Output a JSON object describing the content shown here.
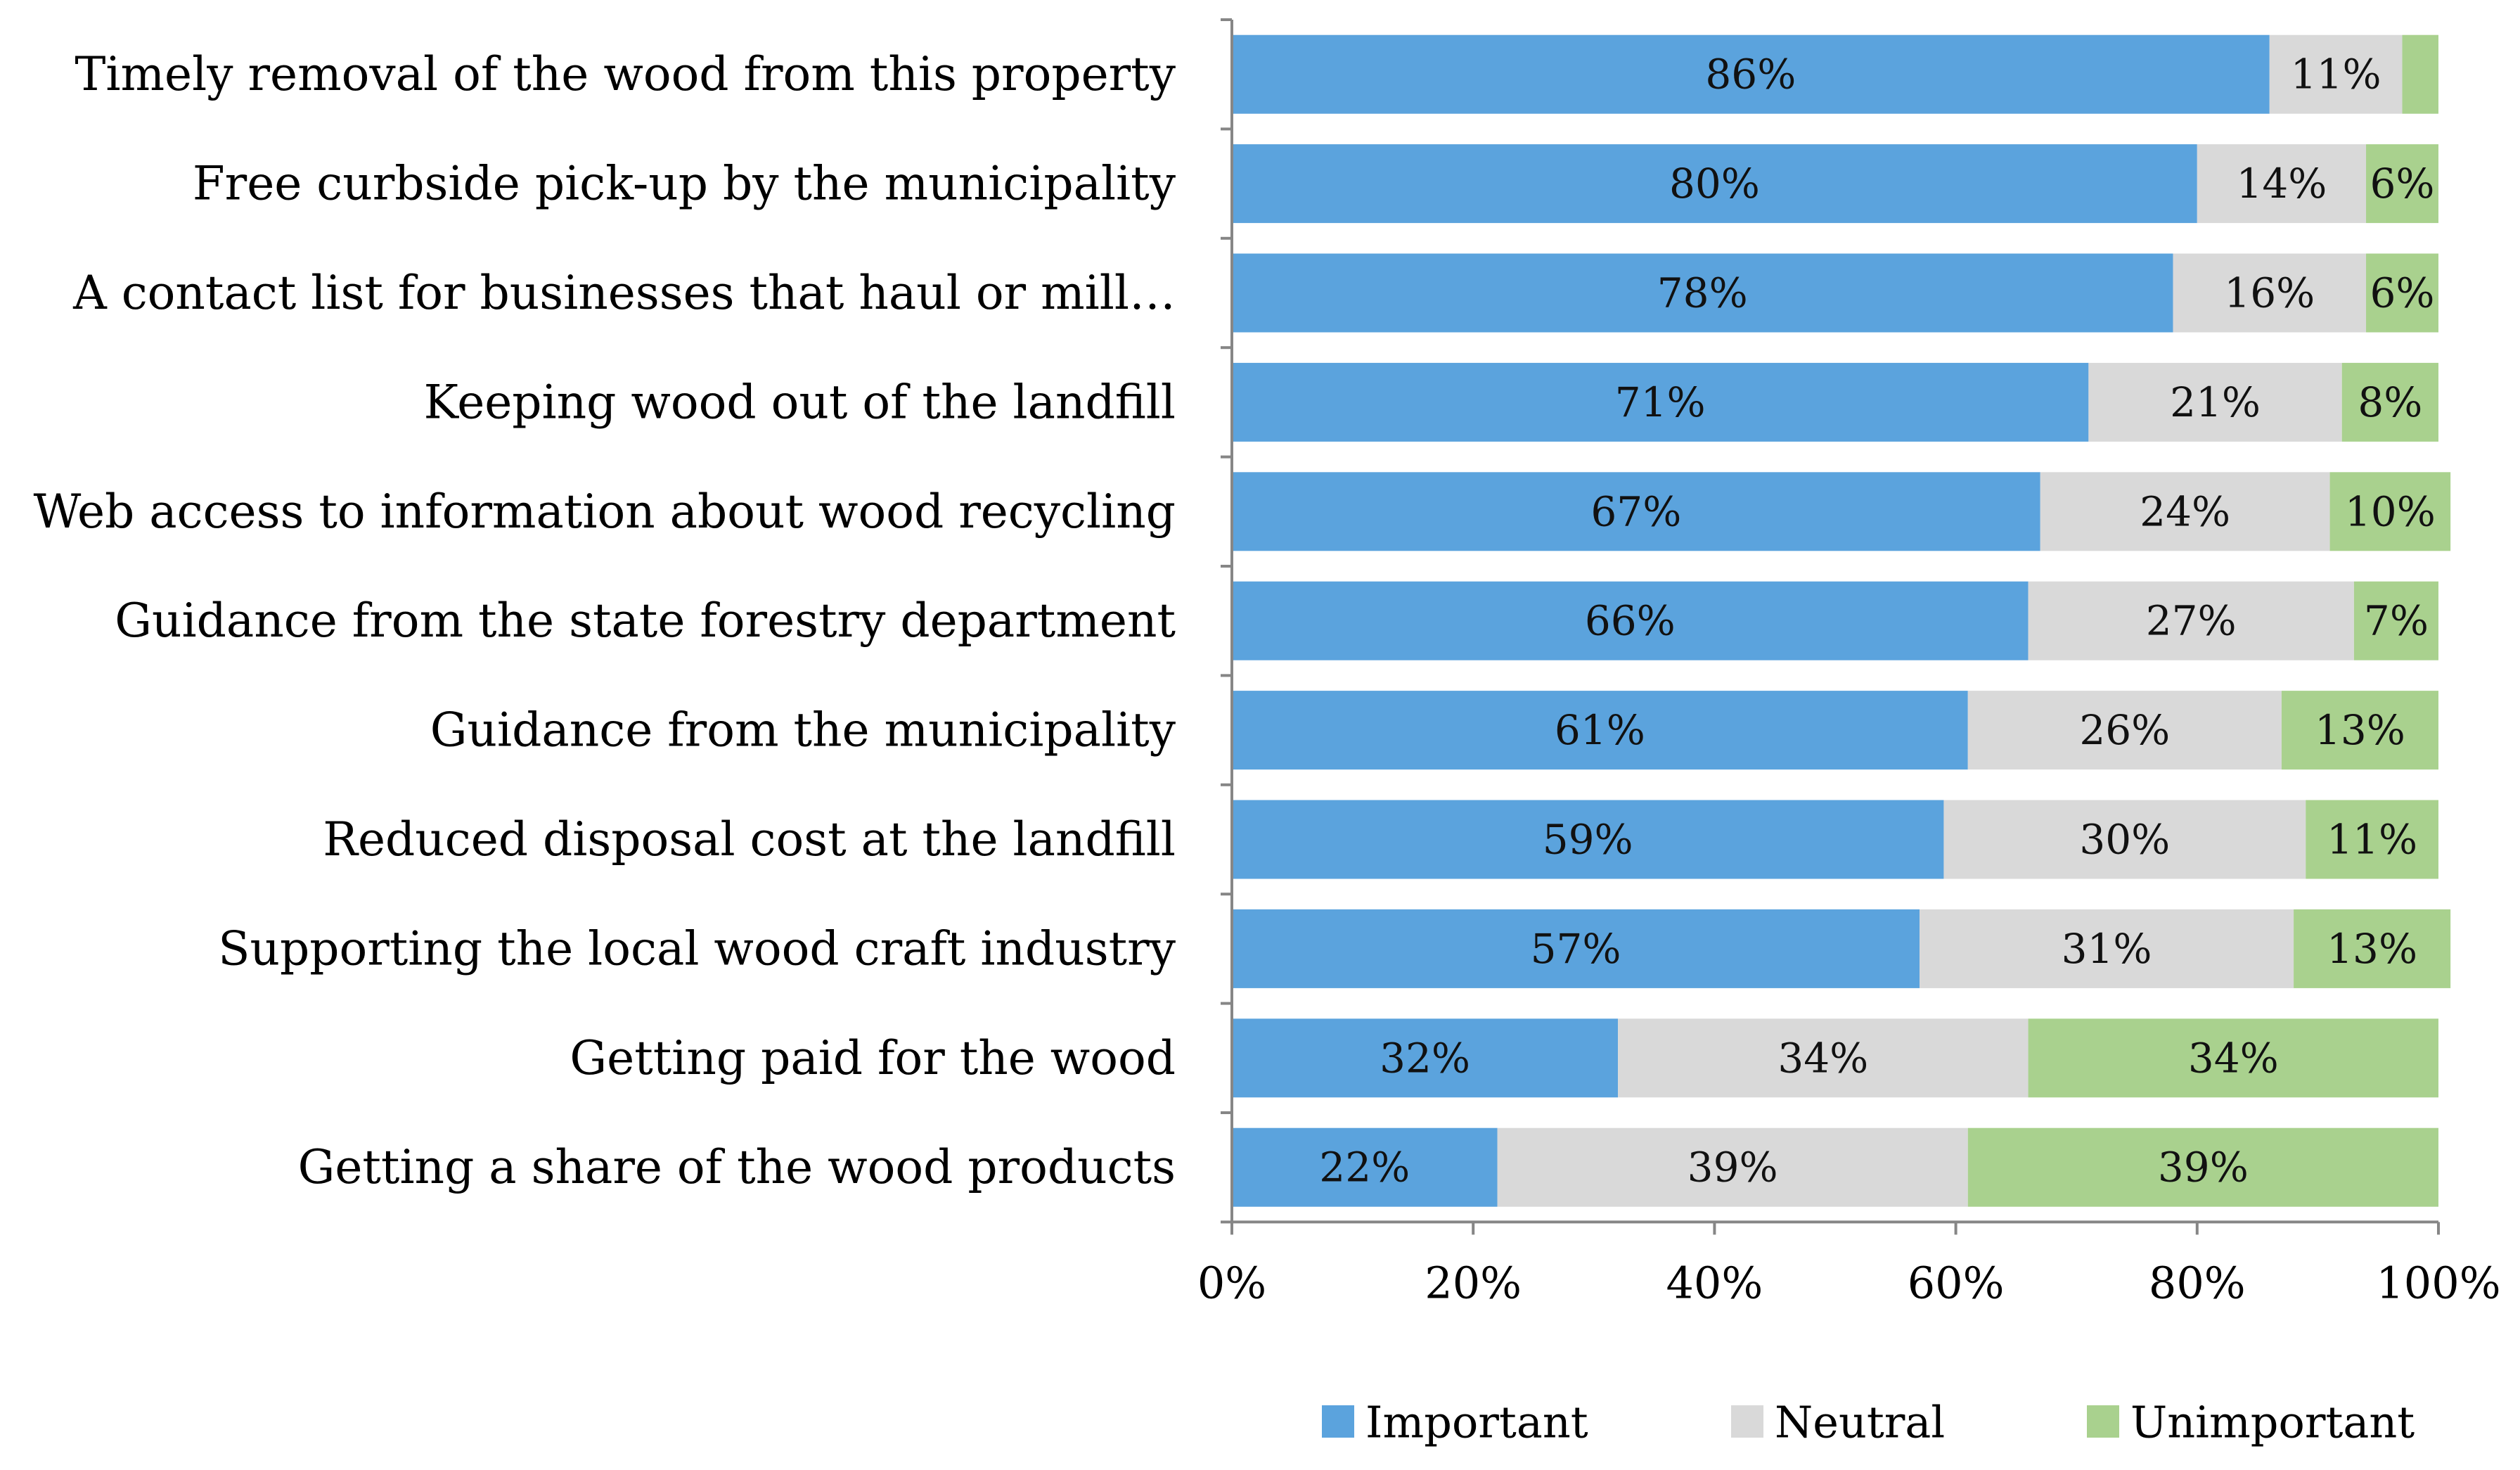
{
  "chart_data": {
    "type": "bar",
    "orientation": "horizontal",
    "stacked": true,
    "title": "",
    "xlabel": "",
    "ylabel": "",
    "xlim": [
      0,
      100
    ],
    "x_ticks": [
      "0%",
      "20%",
      "40%",
      "60%",
      "80%",
      "100%"
    ],
    "categories": [
      "Timely removal of the wood from this property",
      "Free curbside pick-up by the municipality",
      "A contact list for businesses that haul or mill…",
      "Keeping wood out of the landfill",
      "Web access to information about wood recycling",
      "Guidance from the state forestry department",
      "Guidance from the municipality",
      "Reduced disposal cost at the landfill",
      "Supporting the local wood craft industry",
      "Getting paid for the wood",
      "Getting a share of the wood products"
    ],
    "series": [
      {
        "name": "Important",
        "color": "#5BA3DD",
        "values": [
          86,
          80,
          78,
          71,
          67,
          66,
          61,
          59,
          57,
          32,
          22
        ],
        "labels": [
          "86%",
          "80%",
          "78%",
          "71%",
          "67%",
          "66%",
          "61%",
          "59%",
          "57%",
          "32%",
          "22%"
        ]
      },
      {
        "name": "Neutral",
        "color": "#D9D9D9",
        "values": [
          11,
          14,
          16,
          21,
          24,
          27,
          26,
          30,
          31,
          34,
          39
        ],
        "labels": [
          "11%",
          "14%",
          "16%",
          "21%",
          "24%",
          "27%",
          "26%",
          "30%",
          "31%",
          "34%",
          "39%"
        ]
      },
      {
        "name": "Unimportant",
        "color": "#A9D18E",
        "values": [
          3,
          6,
          6,
          8,
          10,
          7,
          13,
          11,
          13,
          34,
          39
        ],
        "labels": [
          "",
          "6%",
          "6%",
          "8%",
          "10%",
          "7%",
          "13%",
          "11%",
          "13%",
          "34%",
          "39%"
        ]
      }
    ],
    "legend": {
      "position": "bottom"
    },
    "grid": false
  }
}
